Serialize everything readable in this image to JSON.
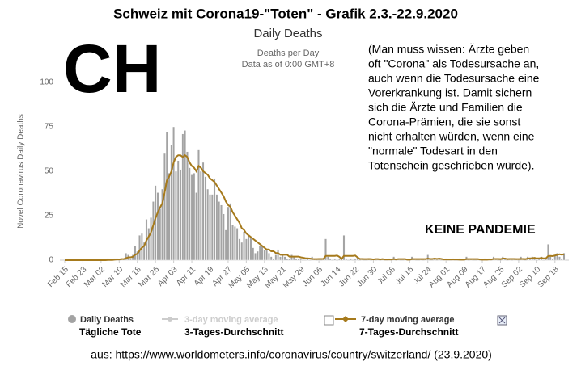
{
  "chart_data": {
    "type": "bar",
    "title": "Schweiz mit Corona19-\"Toten\" - Grafik 2.3.-22.9.2020",
    "subtitle": "Daily Deaths",
    "notes": [
      "Deaths per Day",
      "Data as of 0:00 GMT+8"
    ],
    "ylabel": "Novel Coronavirus Daily Deaths",
    "annotations": {
      "country": "CH",
      "comment_lines": [
        "(Man muss wissen: Ärzte geben",
        "oft \"Corona\" als Todesursache an,",
        "auch wenn die Todesursache eine",
        "Vorerkrankung ist. Damit sichern",
        "sich die Ärzte und Familien die",
        "Corona-Prämien, die sie sonst",
        "nicht erhalten würden, wenn eine",
        "\"normale\" Todesart in den",
        "Totenschein geschrieben würde)."
      ],
      "verdict": "KEINE PANDEMIE",
      "source": "aus: https://www.worldometers.info/coronavirus/country/switzerland/ (23.9.2020)"
    },
    "categories": [
      "Feb 15",
      null,
      null,
      null,
      null,
      null,
      null,
      null,
      "Feb 23",
      null,
      null,
      null,
      null,
      null,
      null,
      null,
      "Mar 02",
      null,
      null,
      null,
      null,
      null,
      null,
      null,
      "Mar 10",
      null,
      null,
      null,
      null,
      null,
      null,
      null,
      "Mar 18",
      null,
      null,
      null,
      null,
      null,
      null,
      null,
      "Mar 26",
      null,
      null,
      null,
      null,
      null,
      null,
      null,
      "Apr 03",
      null,
      null,
      null,
      null,
      null,
      null,
      null,
      "Apr 11",
      null,
      null,
      null,
      null,
      null,
      null,
      null,
      "Apr 19",
      null,
      null,
      null,
      null,
      null,
      null,
      null,
      "Apr 27",
      null,
      null,
      null,
      null,
      null,
      null,
      null,
      "May 05",
      null,
      null,
      null,
      null,
      null,
      null,
      null,
      "May 13",
      null,
      null,
      null,
      null,
      null,
      null,
      null,
      "May 21",
      null,
      null,
      null,
      null,
      null,
      null,
      null,
      "May 29",
      null,
      null,
      null,
      null,
      null,
      null,
      null,
      "Jun 06",
      null,
      null,
      null,
      null,
      null,
      null,
      null,
      "Jun 14",
      null,
      null,
      null,
      null,
      null,
      null,
      null,
      "Jun 22",
      null,
      null,
      null,
      null,
      null,
      null,
      null,
      "Jun 30",
      null,
      null,
      null,
      null,
      null,
      null,
      null,
      "Jul 08",
      null,
      null,
      null,
      null,
      null,
      null,
      null,
      "Jul 16",
      null,
      null,
      null,
      null,
      null,
      null,
      null,
      "Jul 24",
      null,
      null,
      null,
      null,
      null,
      null,
      null,
      "Aug 01",
      null,
      null,
      null,
      null,
      null,
      null,
      null,
      "Aug 09",
      null,
      null,
      null,
      null,
      null,
      null,
      null,
      "Aug 17",
      null,
      null,
      null,
      null,
      null,
      null,
      null,
      "Aug 25",
      null,
      null,
      null,
      null,
      null,
      null,
      null,
      "Sep 02",
      null,
      null,
      null,
      null,
      null,
      null,
      null,
      "Sep 10",
      null,
      null,
      null,
      null,
      null,
      null,
      null,
      "Sep 18",
      null,
      null,
      null,
      null
    ],
    "series": [
      {
        "name": "Daily Deaths",
        "name_de": "Tägliche Tote",
        "type": "bar",
        "color": "#a3a3a3",
        "values": [
          0,
          0,
          0,
          0,
          0,
          0,
          0,
          0,
          0,
          0,
          0,
          0,
          0,
          0,
          0,
          0,
          0,
          0,
          0,
          1,
          0,
          0,
          1,
          1,
          0,
          1,
          1,
          4,
          3,
          1,
          3,
          8,
          5,
          14,
          15,
          10,
          23,
          18,
          24,
          33,
          42,
          38,
          29,
          40,
          60,
          72,
          49,
          65,
          75,
          50,
          56,
          51,
          71,
          73,
          61,
          52,
          48,
          49,
          38,
          62,
          50,
          55,
          47,
          40,
          37,
          37,
          46,
          37,
          33,
          31,
          26,
          17,
          30,
          32,
          20,
          19,
          18,
          12,
          10,
          16,
          12,
          14,
          13,
          7,
          4,
          5,
          8,
          8,
          6,
          6,
          4,
          2,
          1,
          3,
          6,
          2,
          3,
          2,
          1,
          1,
          3,
          2,
          1,
          1,
          1,
          0,
          0,
          1,
          0,
          2,
          1,
          0,
          1,
          0,
          1,
          12,
          2,
          1,
          0,
          1,
          0,
          1,
          0,
          14,
          1,
          0,
          1,
          0,
          1,
          2,
          0,
          1,
          0,
          0,
          1,
          0,
          1,
          0,
          1,
          0,
          1,
          0,
          0,
          1,
          0,
          2,
          0,
          1,
          0,
          0,
          1,
          0,
          0,
          2,
          1,
          0,
          0,
          1,
          0,
          1,
          3,
          0,
          0,
          1,
          0,
          1,
          0,
          0,
          1,
          0,
          0,
          1,
          0,
          0,
          1,
          0,
          0,
          2,
          0,
          1,
          0,
          0,
          1,
          0,
          0,
          1,
          0,
          1,
          0,
          2,
          1,
          0,
          0,
          2,
          1,
          0,
          1,
          0,
          1,
          1,
          0,
          2,
          1,
          0,
          2,
          1,
          2,
          1,
          0,
          1,
          2,
          0,
          1,
          9,
          2,
          1,
          3,
          4,
          2,
          1,
          4
        ]
      },
      {
        "name": "7-day moving average",
        "name_de": "7-Tages-Durchschnitt",
        "type": "line",
        "color": "#a67a1c",
        "values": [
          0,
          0,
          0,
          0,
          0,
          0,
          0,
          0,
          0,
          0,
          0,
          0,
          0,
          0,
          0,
          0,
          0,
          0,
          0,
          0.1,
          0.1,
          0.1,
          0.3,
          0.4,
          0.4,
          0.6,
          0.6,
          1.1,
          1.6,
          1.6,
          1.9,
          3,
          3.6,
          5.4,
          7,
          8,
          11.1,
          13.3,
          15.6,
          19.6,
          23.6,
          26.9,
          29.6,
          32,
          38,
          44.9,
          47,
          50,
          55,
          58,
          59,
          59,
          58,
          59,
          58,
          55,
          53,
          52,
          50,
          53,
          52,
          50,
          49,
          48,
          46,
          45,
          44,
          42,
          40,
          38,
          36,
          33,
          31,
          30,
          27,
          25,
          23,
          21,
          18,
          17,
          15,
          14,
          13,
          12,
          11,
          10,
          9,
          8,
          7,
          6,
          6,
          5,
          5,
          4,
          4,
          3,
          3,
          3,
          3,
          2,
          2,
          2,
          2,
          2,
          1.6,
          1.4,
          1.1,
          1,
          0.9,
          0.7,
          0.6,
          0.6,
          0.7,
          0.7,
          0.7,
          2.4,
          2.4,
          2.4,
          2.4,
          2.4,
          2.6,
          1.9,
          0.7,
          2.4,
          2.4,
          2.4,
          2.4,
          2.4,
          2.6,
          1.6,
          0.7,
          0.7,
          0.6,
          0.6,
          0.7,
          0.6,
          0.4,
          0.6,
          0.6,
          0.4,
          0.6,
          0.4,
          0.4,
          0.4,
          0.4,
          0.6,
          0.4,
          0.6,
          0.6,
          0.6,
          0.6,
          0.3,
          0.3,
          0.6,
          0.6,
          0.6,
          0.6,
          0.6,
          0.6,
          0.6,
          0.9,
          0.7,
          0.7,
          0.9,
          0.7,
          0.9,
          0.7,
          0.4,
          0.4,
          0.4,
          0.4,
          0.4,
          0.4,
          0.4,
          0.3,
          0.3,
          0.3,
          0.6,
          0.6,
          0.6,
          0.6,
          0.6,
          0.6,
          0.4,
          0.3,
          0.3,
          0.3,
          0.4,
          0.4,
          0.7,
          0.7,
          0.7,
          0.6,
          0.9,
          0.9,
          0.6,
          0.7,
          0.7,
          0.7,
          0.6,
          0.6,
          0.7,
          0.7,
          0.6,
          0.9,
          1,
          1.1,
          1.3,
          1,
          1,
          1.3,
          1,
          1,
          2.3,
          2.4,
          2.3,
          2.6,
          3,
          3.3,
          3.1,
          3.3
        ]
      }
    ],
    "hidden_series": [
      {
        "name": "3-day moving average",
        "name_de": "3-Tages-Durchschnitt",
        "color": "#cccccc"
      }
    ],
    "ylim": [
      0,
      100
    ],
    "yticks": [
      0,
      25,
      50,
      75,
      100
    ],
    "grid": false
  }
}
